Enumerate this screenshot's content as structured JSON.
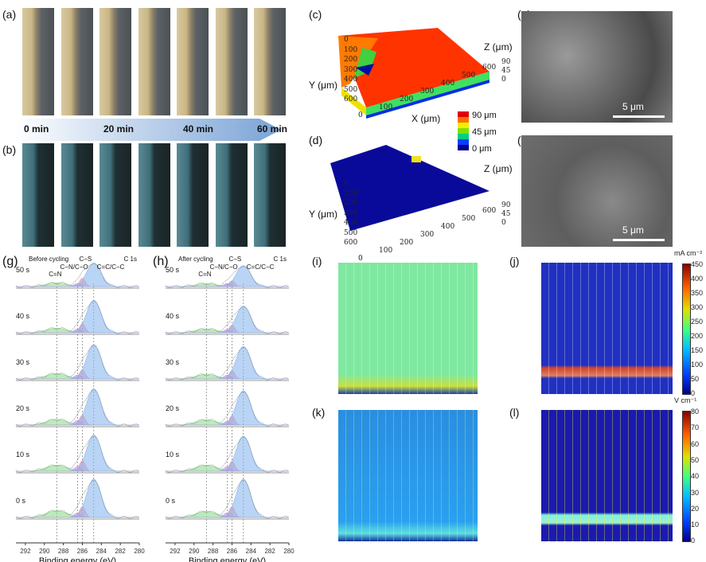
{
  "panels": {
    "a": "(a)",
    "b": "(b)",
    "c": "(c)",
    "d": "(d)",
    "e": "(e)",
    "f": "(f)",
    "g": "(g)",
    "h": "(h)",
    "i": "(i)",
    "j": "(j)",
    "k": "(k)",
    "l": "(l)"
  },
  "timeline": [
    "0 min",
    "20 min",
    "40 min",
    "60 min"
  ],
  "topo": {
    "y_label": "Y (μm)",
    "x_label": "X (μm)",
    "z_label": "Z (μm)",
    "y_ticks": [
      "0",
      "100",
      "200",
      "300",
      "400",
      "500",
      "600"
    ],
    "x_ticks": [
      "0",
      "100",
      "200",
      "300",
      "400",
      "500",
      "600"
    ],
    "z_ticks": [
      "90",
      "45",
      "0"
    ],
    "legend": [
      "90 μm",
      "45 μm",
      "0 μm"
    ],
    "legend_colors": [
      "#e00000",
      "#ff7000",
      "#f0f000",
      "#80e000",
      "#00d080",
      "#0040ff",
      "#00008b"
    ]
  },
  "sem": {
    "scale_bar": "5 μm"
  },
  "colorbar_j": {
    "unit": "mA cm⁻²",
    "ticks": [
      "450",
      "400",
      "350",
      "300",
      "250",
      "200",
      "150",
      "100",
      "50",
      "0"
    ]
  },
  "colorbar_l": {
    "unit": "V cm⁻¹",
    "ticks": [
      "80",
      "70",
      "60",
      "50",
      "40",
      "30",
      "20",
      "10",
      "0"
    ]
  },
  "chart_data": [
    {
      "type": "line",
      "title": "Before cycling",
      "subtitle": "C 1s",
      "xlabel": "Binding energy (eV)",
      "xlim": [
        293,
        280
      ],
      "x_ticks": [
        "292",
        "290",
        "288",
        "286",
        "284",
        "282",
        "280"
      ],
      "peaks": [
        {
          "name": "C=N",
          "center": 288.7
        },
        {
          "name": "C−N/C−O",
          "center": 286.5
        },
        {
          "name": "C−S",
          "center": 286.0
        },
        {
          "name": "C=C/C−C",
          "center": 284.8
        }
      ],
      "series": [
        {
          "name": "50 s",
          "amplitudes": [
            0.1,
            0.08,
            0.22,
            0.62
          ]
        },
        {
          "name": "40 s",
          "amplitudes": [
            0.12,
            0.1,
            0.24,
            0.85
          ]
        },
        {
          "name": "30 s",
          "amplitudes": [
            0.14,
            0.1,
            0.24,
            0.9
          ]
        },
        {
          "name": "20 s",
          "amplitudes": [
            0.15,
            0.12,
            0.26,
            0.95
          ]
        },
        {
          "name": "10 s",
          "amplitudes": [
            0.16,
            0.12,
            0.28,
            0.95
          ]
        },
        {
          "name": "0 s",
          "amplitudes": [
            0.18,
            0.12,
            0.28,
            1.0
          ]
        }
      ]
    },
    {
      "type": "line",
      "title": "After cycling",
      "subtitle": "C 1s",
      "xlabel": "Binding energy (eV)",
      "xlim": [
        293,
        280
      ],
      "x_ticks": [
        "292",
        "290",
        "288",
        "286",
        "284",
        "282",
        "280"
      ],
      "peaks": [
        {
          "name": "C=N",
          "center": 288.7
        },
        {
          "name": "C−N/C−O",
          "center": 286.5
        },
        {
          "name": "C−S",
          "center": 286.0
        },
        {
          "name": "C=C/C−C",
          "center": 284.8
        }
      ],
      "series": [
        {
          "name": "50 s",
          "amplitudes": [
            0.08,
            0.08,
            0.15,
            0.55
          ]
        },
        {
          "name": "40 s",
          "amplitudes": [
            0.1,
            0.08,
            0.2,
            0.7
          ]
        },
        {
          "name": "30 s",
          "amplitudes": [
            0.12,
            0.1,
            0.22,
            0.85
          ]
        },
        {
          "name": "20 s",
          "amplitudes": [
            0.14,
            0.1,
            0.24,
            0.9
          ]
        },
        {
          "name": "10 s",
          "amplitudes": [
            0.16,
            0.12,
            0.26,
            0.92
          ]
        },
        {
          "name": "0 s",
          "amplitudes": [
            0.16,
            0.12,
            0.28,
            1.0
          ]
        }
      ]
    }
  ]
}
